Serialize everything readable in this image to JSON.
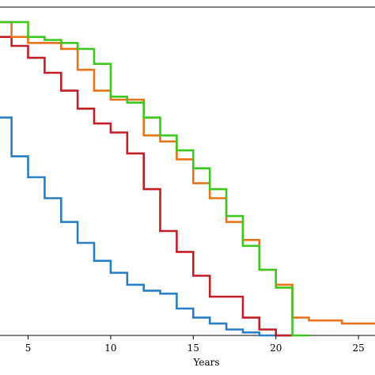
{
  "chart_data": {
    "type": "line",
    "step": true,
    "title": "",
    "xlabel": "Years",
    "ylabel": "",
    "xlim": [
      3.3,
      26
    ],
    "ylim": [
      0,
      1.1
    ],
    "grid": false,
    "legend": "none",
    "x_ticks": [
      5,
      10,
      15,
      20,
      25
    ],
    "x_tick_labels": [
      "5",
      "10",
      "15",
      "20",
      "25"
    ],
    "series": [
      {
        "color": "#2a7ec6",
        "x": [
          3,
          4,
          5,
          6,
          7,
          8,
          9,
          10,
          11,
          12,
          13,
          14,
          15,
          16,
          17,
          18,
          19,
          20
        ],
        "y": [
          0.73,
          0.6,
          0.53,
          0.46,
          0.38,
          0.31,
          0.25,
          0.21,
          0.17,
          0.15,
          0.14,
          0.09,
          0.06,
          0.04,
          0.02,
          0.01,
          0.0,
          0.0
        ]
      },
      {
        "color": "#c21e25",
        "x": [
          3,
          4,
          5,
          6,
          7,
          8,
          9,
          10,
          11,
          12,
          13,
          14,
          15,
          16,
          17,
          18,
          19,
          20
        ],
        "y": [
          1.0,
          0.97,
          0.93,
          0.88,
          0.82,
          0.76,
          0.71,
          0.68,
          0.61,
          0.49,
          0.35,
          0.28,
          0.2,
          0.13,
          0.13,
          0.06,
          0.02,
          0.0
        ]
      },
      {
        "color": "#e8731a",
        "x": [
          3,
          4,
          5,
          6,
          7,
          8,
          9,
          10,
          11,
          12,
          13,
          14,
          15,
          16,
          17,
          18,
          19,
          20,
          21,
          22,
          23,
          24,
          25,
          26
        ],
        "y": [
          1.05,
          1.0,
          0.98,
          0.98,
          0.96,
          0.89,
          0.82,
          0.79,
          0.79,
          0.67,
          0.65,
          0.59,
          0.51,
          0.46,
          0.38,
          0.32,
          0.22,
          0.17,
          0.06,
          0.05,
          0.05,
          0.04,
          0.04,
          0.04
        ]
      },
      {
        "color": "#3cc81c",
        "x": [
          3,
          4,
          5,
          6,
          7,
          8,
          9,
          10,
          11,
          12,
          13,
          14,
          15,
          16,
          17,
          18,
          19,
          20,
          21
        ],
        "y": [
          1.05,
          1.05,
          1.0,
          0.99,
          0.98,
          0.96,
          0.91,
          0.8,
          0.78,
          0.73,
          0.67,
          0.62,
          0.56,
          0.49,
          0.4,
          0.3,
          0.22,
          0.16,
          0.0
        ]
      }
    ]
  }
}
